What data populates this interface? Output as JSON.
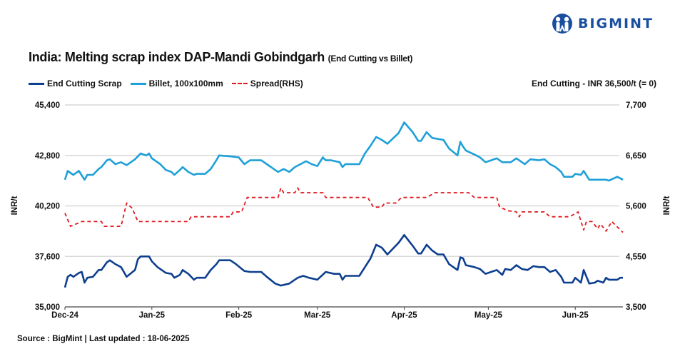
{
  "brand": {
    "name": "BIGMINT",
    "color": "#1a4fa0"
  },
  "header": {
    "title": "India: Melting scrap index DAP-Mandi Gobindgarh",
    "subtitle": "(End Cutting vs Billet)",
    "note": "End Cutting - INR 36,500/t (= 0)"
  },
  "footer": {
    "source": "Source : BigMint | Last updated : 18-06-2025"
  },
  "chart_data": {
    "type": "line",
    "title": "India: Melting scrap index DAP-Mandi Gobindgarh (End Cutting vs Billet)",
    "ylabel": "INR/t",
    "ylabel_right": "INR/t",
    "ylim": [
      35000,
      45400
    ],
    "ylim_right": [
      3500,
      7700
    ],
    "yticks": [
      "35,000",
      "37,600",
      "40,200",
      "42,800",
      "45,400"
    ],
    "yticks_right": [
      "3,500",
      "4,550",
      "5,600",
      "6,650",
      "7,700"
    ],
    "xlim": [
      "2024-12-01",
      "2025-06-18"
    ],
    "xticks": [
      {
        "date": "2024-12-01",
        "label": "Dec-24"
      },
      {
        "date": "2025-01-01",
        "label": "Jan-25"
      },
      {
        "date": "2025-02-01",
        "label": "Feb-25"
      },
      {
        "date": "2025-03-01",
        "label": "Mar-25"
      },
      {
        "date": "2025-04-01",
        "label": "Apr-25"
      },
      {
        "date": "2025-05-01",
        "label": "May-25"
      },
      {
        "date": "2025-06-01",
        "label": "Jun-25"
      }
    ],
    "grid": true,
    "legend": "top-left",
    "series": [
      {
        "name": "End Cutting Scrap",
        "axis": "left",
        "color": "#0d3f8f",
        "style": "solid",
        "points": [
          [
            "2024-12-01",
            36000
          ],
          [
            "2024-12-02",
            36550
          ],
          [
            "2024-12-03",
            36650
          ],
          [
            "2024-12-04",
            36550
          ],
          [
            "2024-12-06",
            36750
          ],
          [
            "2024-12-07",
            36800
          ],
          [
            "2024-12-08",
            36250
          ],
          [
            "2024-12-09",
            36500
          ],
          [
            "2024-12-11",
            36550
          ],
          [
            "2024-12-13",
            36900
          ],
          [
            "2024-12-14",
            36900
          ],
          [
            "2024-12-16",
            37300
          ],
          [
            "2024-12-17",
            37400
          ],
          [
            "2024-12-19",
            37200
          ],
          [
            "2024-12-21",
            37050
          ],
          [
            "2024-12-23",
            36550
          ],
          [
            "2024-12-26",
            36900
          ],
          [
            "2024-12-27",
            37450
          ],
          [
            "2024-12-28",
            37600
          ],
          [
            "2024-12-31",
            37600
          ],
          [
            "2025-01-01",
            37350
          ],
          [
            "2025-01-03",
            37050
          ],
          [
            "2025-01-06",
            36750
          ],
          [
            "2025-01-08",
            36700
          ],
          [
            "2025-01-09",
            36500
          ],
          [
            "2025-01-11",
            36650
          ],
          [
            "2025-01-12",
            36900
          ],
          [
            "2025-01-14",
            36700
          ],
          [
            "2025-01-16",
            36400
          ],
          [
            "2025-01-17",
            36500
          ],
          [
            "2025-01-20",
            36500
          ],
          [
            "2025-01-22",
            36900
          ],
          [
            "2025-01-24",
            37200
          ],
          [
            "2025-01-25",
            37400
          ],
          [
            "2025-01-29",
            37400
          ],
          [
            "2025-01-31",
            37200
          ],
          [
            "2025-02-03",
            36850
          ],
          [
            "2025-02-05",
            36800
          ],
          [
            "2025-02-09",
            36800
          ],
          [
            "2025-02-11",
            36550
          ],
          [
            "2025-02-14",
            36200
          ],
          [
            "2025-02-16",
            36100
          ],
          [
            "2025-02-19",
            36200
          ],
          [
            "2025-02-22",
            36500
          ],
          [
            "2025-02-24",
            36600
          ],
          [
            "2025-02-26",
            36500
          ],
          [
            "2025-03-01",
            36400
          ],
          [
            "2025-03-04",
            36800
          ],
          [
            "2025-03-07",
            36700
          ],
          [
            "2025-03-09",
            36700
          ],
          [
            "2025-03-10",
            36400
          ],
          [
            "2025-03-11",
            36600
          ],
          [
            "2025-03-16",
            36600
          ],
          [
            "2025-03-18",
            37050
          ],
          [
            "2025-03-20",
            37500
          ],
          [
            "2025-03-22",
            38200
          ],
          [
            "2025-03-24",
            38050
          ],
          [
            "2025-03-26",
            37700
          ],
          [
            "2025-03-30",
            38300
          ],
          [
            "2025-04-01",
            38700
          ],
          [
            "2025-04-04",
            38150
          ],
          [
            "2025-04-06",
            37750
          ],
          [
            "2025-04-07",
            37750
          ],
          [
            "2025-04-09",
            38200
          ],
          [
            "2025-04-11",
            37900
          ],
          [
            "2025-04-13",
            37700
          ],
          [
            "2025-04-15",
            37700
          ],
          [
            "2025-04-17",
            37200
          ],
          [
            "2025-04-20",
            36900
          ],
          [
            "2025-04-21",
            37550
          ],
          [
            "2025-04-22",
            37500
          ],
          [
            "2025-04-23",
            37150
          ],
          [
            "2025-04-26",
            37050
          ],
          [
            "2025-04-28",
            36950
          ],
          [
            "2025-04-30",
            36700
          ],
          [
            "2025-05-02",
            36800
          ],
          [
            "2025-05-04",
            36900
          ],
          [
            "2025-05-06",
            36650
          ],
          [
            "2025-05-07",
            36950
          ],
          [
            "2025-05-09",
            36900
          ],
          [
            "2025-05-11",
            37150
          ],
          [
            "2025-05-13",
            36950
          ],
          [
            "2025-05-15",
            36900
          ],
          [
            "2025-05-17",
            37100
          ],
          [
            "2025-05-19",
            37050
          ],
          [
            "2025-05-21",
            37050
          ],
          [
            "2025-05-23",
            36800
          ],
          [
            "2025-05-25",
            36900
          ],
          [
            "2025-05-27",
            36550
          ],
          [
            "2025-05-28",
            36250
          ],
          [
            "2025-05-31",
            36250
          ],
          [
            "2025-06-01",
            36500
          ],
          [
            "2025-06-03",
            36250
          ],
          [
            "2025-06-04",
            36900
          ],
          [
            "2025-06-06",
            36200
          ],
          [
            "2025-06-08",
            36250
          ],
          [
            "2025-06-09",
            36350
          ],
          [
            "2025-06-11",
            36250
          ],
          [
            "2025-06-12",
            36500
          ],
          [
            "2025-06-13",
            36400
          ],
          [
            "2025-06-16",
            36400
          ],
          [
            "2025-06-17",
            36500
          ],
          [
            "2025-06-18",
            36500
          ]
        ]
      },
      {
        "name": "Billet, 100x100mm",
        "axis": "left",
        "color": "#1fa0d8",
        "style": "solid",
        "points": [
          [
            "2024-12-01",
            41550
          ],
          [
            "2024-12-02",
            42000
          ],
          [
            "2024-12-04",
            41800
          ],
          [
            "2024-12-05",
            41900
          ],
          [
            "2024-12-06",
            42000
          ],
          [
            "2024-12-08",
            41550
          ],
          [
            "2024-12-09",
            41800
          ],
          [
            "2024-12-11",
            41800
          ],
          [
            "2024-12-13",
            42100
          ],
          [
            "2024-12-14",
            42200
          ],
          [
            "2024-12-16",
            42550
          ],
          [
            "2024-12-17",
            42600
          ],
          [
            "2024-12-19",
            42350
          ],
          [
            "2024-12-21",
            42450
          ],
          [
            "2024-12-23",
            42300
          ],
          [
            "2024-12-26",
            42600
          ],
          [
            "2024-12-28",
            42900
          ],
          [
            "2024-12-30",
            42800
          ],
          [
            "2024-12-31",
            42900
          ],
          [
            "2025-01-01",
            42650
          ],
          [
            "2025-01-04",
            42350
          ],
          [
            "2025-01-06",
            42050
          ],
          [
            "2025-01-08",
            41950
          ],
          [
            "2025-01-09",
            41800
          ],
          [
            "2025-01-11",
            42050
          ],
          [
            "2025-01-12",
            42200
          ],
          [
            "2025-01-14",
            41950
          ],
          [
            "2025-01-16",
            41800
          ],
          [
            "2025-01-17",
            41850
          ],
          [
            "2025-01-20",
            41850
          ],
          [
            "2025-01-22",
            42100
          ],
          [
            "2025-01-24",
            42550
          ],
          [
            "2025-01-25",
            42800
          ],
          [
            "2025-01-29",
            42750
          ],
          [
            "2025-02-01",
            42700
          ],
          [
            "2025-02-03",
            42350
          ],
          [
            "2025-02-04",
            42450
          ],
          [
            "2025-02-05",
            42550
          ],
          [
            "2025-02-09",
            42550
          ],
          [
            "2025-02-11",
            42350
          ],
          [
            "2025-02-15",
            41950
          ],
          [
            "2025-02-17",
            42100
          ],
          [
            "2025-02-19",
            41950
          ],
          [
            "2025-02-21",
            42200
          ],
          [
            "2025-02-23",
            42350
          ],
          [
            "2025-02-25",
            42500
          ],
          [
            "2025-02-27",
            42350
          ],
          [
            "2025-03-01",
            42250
          ],
          [
            "2025-03-03",
            42700
          ],
          [
            "2025-03-04",
            42550
          ],
          [
            "2025-03-06",
            42550
          ],
          [
            "2025-03-09",
            42450
          ],
          [
            "2025-03-10",
            42200
          ],
          [
            "2025-03-11",
            42350
          ],
          [
            "2025-03-16",
            42350
          ],
          [
            "2025-03-18",
            42900
          ],
          [
            "2025-03-20",
            43300
          ],
          [
            "2025-03-22",
            43750
          ],
          [
            "2025-03-24",
            43600
          ],
          [
            "2025-03-26",
            43400
          ],
          [
            "2025-03-30",
            43950
          ],
          [
            "2025-04-01",
            44500
          ],
          [
            "2025-04-04",
            44000
          ],
          [
            "2025-04-06",
            43550
          ],
          [
            "2025-04-07",
            43550
          ],
          [
            "2025-04-09",
            44000
          ],
          [
            "2025-04-11",
            43700
          ],
          [
            "2025-04-15",
            43600
          ],
          [
            "2025-04-17",
            43150
          ],
          [
            "2025-04-20",
            42800
          ],
          [
            "2025-04-21",
            43500
          ],
          [
            "2025-04-22",
            43250
          ],
          [
            "2025-04-23",
            43050
          ],
          [
            "2025-04-26",
            42850
          ],
          [
            "2025-04-28",
            42700
          ],
          [
            "2025-04-30",
            42450
          ],
          [
            "2025-05-02",
            42550
          ],
          [
            "2025-05-04",
            42650
          ],
          [
            "2025-05-06",
            42450
          ],
          [
            "2025-05-09",
            42450
          ],
          [
            "2025-05-11",
            42650
          ],
          [
            "2025-05-13",
            42450
          ],
          [
            "2025-05-14",
            42350
          ],
          [
            "2025-05-16",
            42600
          ],
          [
            "2025-05-19",
            42550
          ],
          [
            "2025-05-21",
            42600
          ],
          [
            "2025-05-23",
            42350
          ],
          [
            "2025-05-25",
            42200
          ],
          [
            "2025-05-27",
            41950
          ],
          [
            "2025-05-28",
            41700
          ],
          [
            "2025-05-31",
            41700
          ],
          [
            "2025-06-01",
            41850
          ],
          [
            "2025-06-03",
            41800
          ],
          [
            "2025-06-04",
            42000
          ],
          [
            "2025-06-06",
            41550
          ],
          [
            "2025-06-08",
            41550
          ],
          [
            "2025-06-12",
            41550
          ],
          [
            "2025-06-13",
            41500
          ],
          [
            "2025-06-16",
            41700
          ],
          [
            "2025-06-18",
            41550
          ]
        ]
      },
      {
        "name": "Spread(RHS)",
        "axis": "right",
        "color": "#e0191e",
        "style": "dashed",
        "points": [
          [
            "2024-12-01",
            5450
          ],
          [
            "2024-12-03",
            5175
          ],
          [
            "2024-12-07",
            5275
          ],
          [
            "2024-12-14",
            5275
          ],
          [
            "2024-12-15",
            5175
          ],
          [
            "2024-12-21",
            5175
          ],
          [
            "2024-12-23",
            5660
          ],
          [
            "2024-12-25",
            5550
          ],
          [
            "2024-12-27",
            5275
          ],
          [
            "2025-01-14",
            5275
          ],
          [
            "2025-01-15",
            5375
          ],
          [
            "2025-01-29",
            5375
          ],
          [
            "2025-01-30",
            5475
          ],
          [
            "2025-02-02",
            5475
          ],
          [
            "2025-02-04",
            5775
          ],
          [
            "2025-02-15",
            5775
          ],
          [
            "2025-02-16",
            5975
          ],
          [
            "2025-02-17",
            5875
          ],
          [
            "2025-02-21",
            5875
          ],
          [
            "2025-02-22",
            5975
          ],
          [
            "2025-02-23",
            5875
          ],
          [
            "2025-03-03",
            5875
          ],
          [
            "2025-03-04",
            5775
          ],
          [
            "2025-03-19",
            5775
          ],
          [
            "2025-03-21",
            5575
          ],
          [
            "2025-03-24",
            5575
          ],
          [
            "2025-03-25",
            5660
          ],
          [
            "2025-03-29",
            5660
          ],
          [
            "2025-03-31",
            5775
          ],
          [
            "2025-04-09",
            5775
          ],
          [
            "2025-04-12",
            5875
          ],
          [
            "2025-04-24",
            5875
          ],
          [
            "2025-04-26",
            5775
          ],
          [
            "2025-05-04",
            5775
          ],
          [
            "2025-05-05",
            5575
          ],
          [
            "2025-05-08",
            5500
          ],
          [
            "2025-05-11",
            5475
          ],
          [
            "2025-05-12",
            5375
          ],
          [
            "2025-05-13",
            5475
          ],
          [
            "2025-05-21",
            5475
          ],
          [
            "2025-05-23",
            5375
          ],
          [
            "2025-05-30",
            5375
          ],
          [
            "2025-06-02",
            5475
          ],
          [
            "2025-06-04",
            5100
          ],
          [
            "2025-06-05",
            5275
          ],
          [
            "2025-06-07",
            5275
          ],
          [
            "2025-06-09",
            5125
          ],
          [
            "2025-06-10",
            5225
          ],
          [
            "2025-06-12",
            5075
          ],
          [
            "2025-06-14",
            5275
          ],
          [
            "2025-06-18",
            5050
          ]
        ]
      }
    ]
  }
}
